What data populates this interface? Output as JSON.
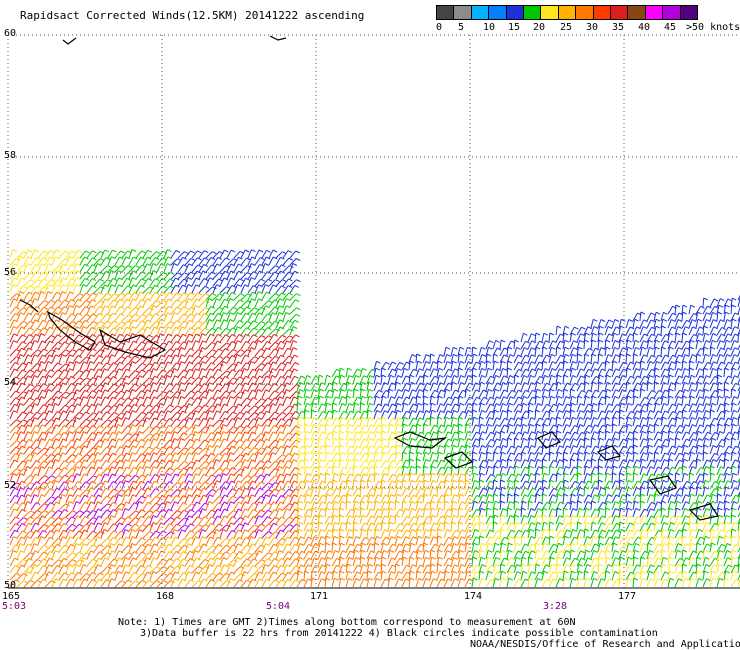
{
  "title": "Rapidsact Corrected Winds(12.5KM) 20141222 ascending",
  "legend": {
    "colors": [
      "#444444",
      "#8c8c8c",
      "#00b4ff",
      "#0080ff",
      "#1e32dc",
      "#00c800",
      "#ffe61e",
      "#ffb400",
      "#ff7800",
      "#ff3c00",
      "#dc1e1e",
      "#8b4513",
      "#ff00ff",
      "#b400dc",
      "#500080"
    ],
    "labels": [
      "0",
      "5",
      "10",
      "15",
      "20",
      "25",
      "30",
      "35",
      "40",
      "45",
      ">50 knots"
    ]
  },
  "axes": {
    "lat_labels": [
      "60",
      "58",
      "56",
      "54",
      "52",
      "50"
    ],
    "lon_labels": [
      "165",
      "168",
      "171",
      "174",
      "177"
    ],
    "time_labels": [
      "5:03",
      "5:04",
      "3:28"
    ]
  },
  "notes": {
    "line1": "Note: 1) Times are GMT 2)Times along bottom correspond to measurement at 60N",
    "line2": "3)Data buffer is 22 hrs from 20141222 4) Black circles indicate possible contamination",
    "line3": "NOAA/NESDIS/Office of Research and Applications"
  },
  "map_data": {
    "lat_range": [
      50,
      60
    ],
    "lon_range": [
      165,
      179.3
    ]
  }
}
